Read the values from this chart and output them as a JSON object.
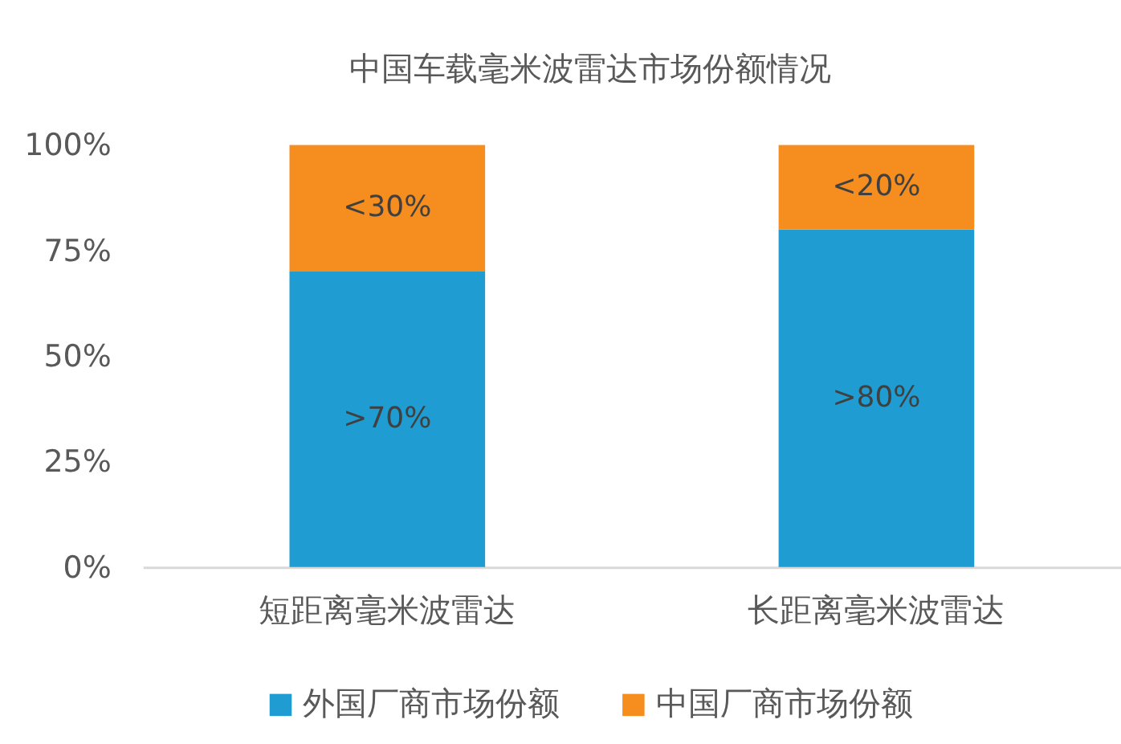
{
  "chart_data": {
    "type": "bar",
    "title": "中国车载毫米波雷达市场份额情况",
    "categories": [
      "短距离毫米波雷达",
      "长距离毫米波雷达"
    ],
    "stacked": true,
    "series": [
      {
        "name": "外国厂商市场份额",
        "color": "#1f9dd3",
        "values": [
          70,
          80
        ],
        "value_labels": [
          ">70%",
          ">80%"
        ]
      },
      {
        "name": "中国厂商市场份额",
        "color": "#f58d1f",
        "values": [
          30,
          20
        ],
        "value_labels": [
          "<30%",
          "<20%"
        ]
      }
    ],
    "ylim": [
      0,
      100
    ],
    "yticks": [
      {
        "value": 0,
        "label": "0%"
      },
      {
        "value": 25,
        "label": "25%"
      },
      {
        "value": 50,
        "label": "50%"
      },
      {
        "value": 75,
        "label": "75%"
      },
      {
        "value": 100,
        "label": "100%"
      }
    ],
    "legend": "bottom"
  }
}
